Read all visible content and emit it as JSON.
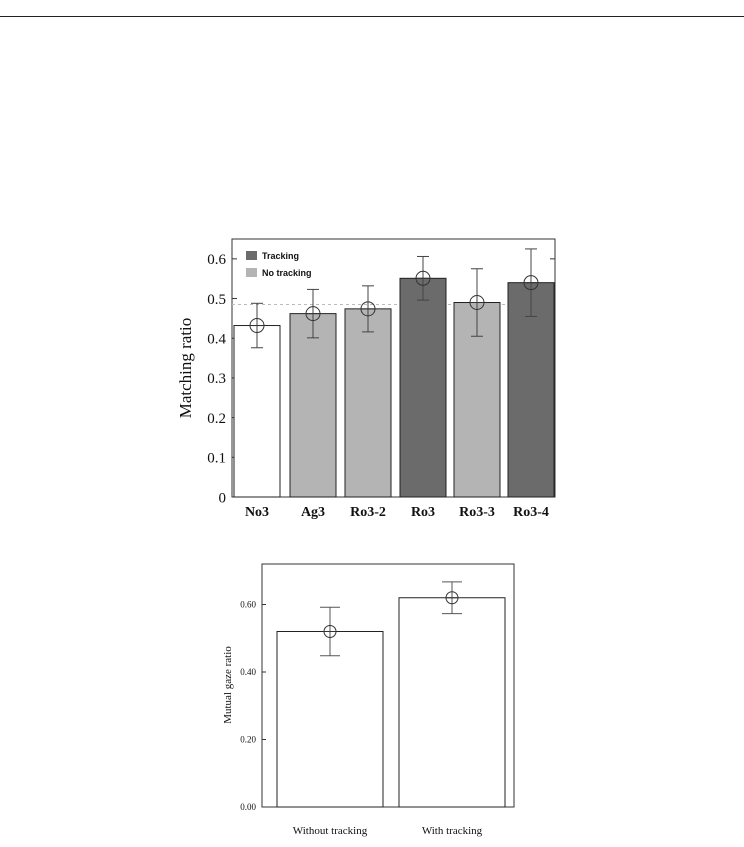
{
  "chart_data": [
    {
      "type": "bar",
      "ylabel": "Matching ratio",
      "categories": [
        "No3",
        "Ag3",
        "Ro3-2",
        "Ro3",
        "Ro3-3",
        "Ro3-4"
      ],
      "values": [
        0.432,
        0.462,
        0.474,
        0.551,
        0.49,
        0.54
      ],
      "error": [
        0.056,
        0.061,
        0.058,
        0.055,
        0.085,
        0.085
      ],
      "group": [
        "none",
        "no-tracking",
        "no-tracking",
        "tracking",
        "no-tracking",
        "tracking"
      ],
      "ylim": [
        0,
        0.65
      ],
      "yticks": [
        "0",
        "0.1",
        "0.2",
        "0.3",
        "0.4",
        "0.5",
        "0.6"
      ],
      "reference_line": 0.485,
      "legend": [
        {
          "label": "Tracking",
          "color": "#6b6b6b"
        },
        {
          "label": "No tracking",
          "color": "#b4b4b4"
        }
      ],
      "legend_position": "top-left",
      "colors": {
        "none": "#ffffff",
        "no-tracking": "#b4b4b4",
        "tracking": "#6b6b6b"
      }
    },
    {
      "type": "bar",
      "ylabel": "Mutual gaze ratio",
      "categories": [
        "Without tracking",
        "With tracking"
      ],
      "values": [
        0.52,
        0.62
      ],
      "error": [
        0.072,
        0.047
      ],
      "ylim": [
        0,
        0.72
      ],
      "yticks": [
        "0.00",
        "0.20",
        "0.40",
        "0.60"
      ],
      "colors": {
        "bar": "#ffffff"
      }
    }
  ]
}
